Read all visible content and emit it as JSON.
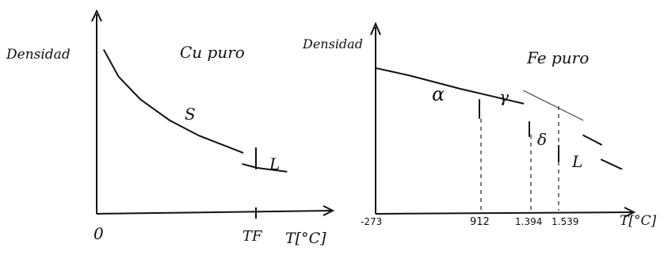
{
  "chart_data": [
    {
      "type": "line",
      "title": "Cu puro",
      "ylabel": "Densidad",
      "xlabel": "T[°C]",
      "origin_label": "0",
      "x_ticks": [
        "TF"
      ],
      "phases": [
        {
          "name": "S",
          "x": [
            0.05,
            0.15,
            0.3,
            0.5,
            0.7,
            0.9,
            1.0
          ],
          "y": [
            0.82,
            0.68,
            0.56,
            0.45,
            0.37,
            0.31,
            0.28
          ]
        },
        {
          "name": "L",
          "x": [
            1.0,
            1.1,
            1.3
          ],
          "y": [
            0.22,
            0.2,
            0.18
          ]
        }
      ],
      "xlim": [
        0,
        1.4
      ],
      "ylim": [
        0,
        1
      ]
    },
    {
      "type": "line",
      "title": "Fe puro",
      "ylabel": "Densidad",
      "xlabel": "T[°C]",
      "x_ticks": [
        "-273",
        "912",
        "1.394",
        "1.539"
      ],
      "phases": [
        {
          "name": "α",
          "x": [
            -273,
            0,
            400,
            912
          ],
          "y": [
            0.78,
            0.74,
            0.67,
            0.59
          ]
        },
        {
          "name": "γ",
          "x": [
            912,
            1394
          ],
          "y": [
            0.66,
            0.5
          ]
        },
        {
          "name": "δ",
          "x": [
            1394,
            1539
          ],
          "y": [
            0.42,
            0.37
          ]
        },
        {
          "name": "L",
          "x": [
            1539,
            1700
          ],
          "y": [
            0.29,
            0.24
          ]
        }
      ],
      "xlim": [
        -273,
        1800
      ],
      "ylim": [
        0,
        1
      ]
    }
  ]
}
